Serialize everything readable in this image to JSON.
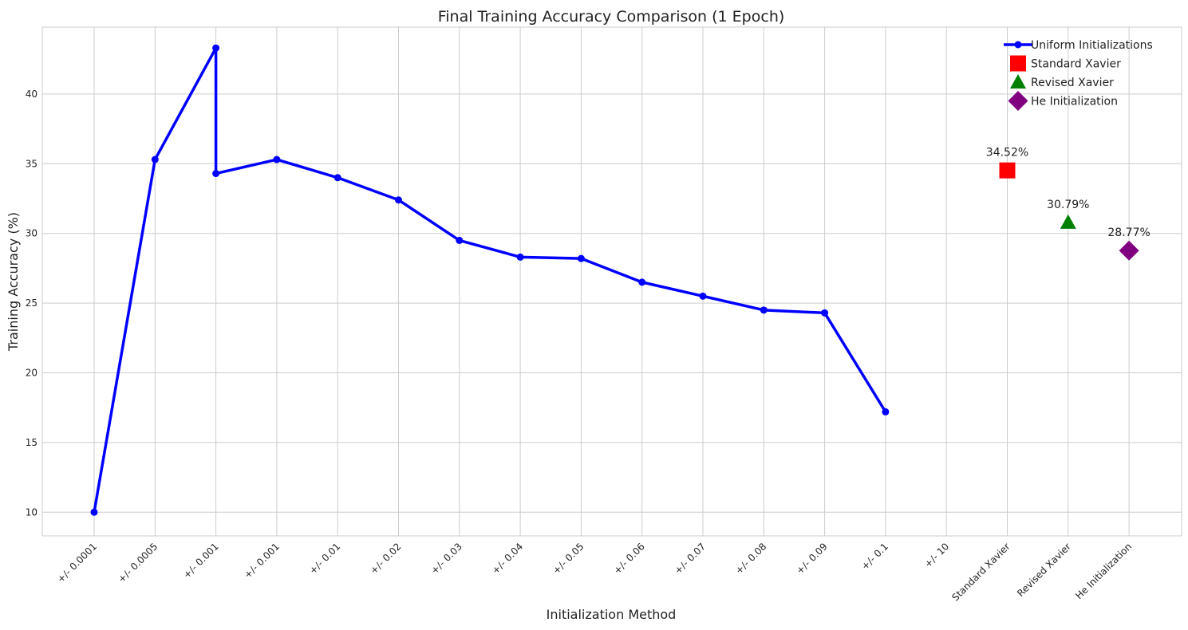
{
  "chart_data": {
    "type": "line",
    "title": "Final Training Accuracy Comparison (1 Epoch)",
    "xlabel": "Initialization Method",
    "ylabel": "Training Accuracy (%)",
    "categories": [
      "+/- 0.0001",
      "+/- 0.0005",
      "+/- 0.001",
      "+/- 0.001",
      "+/- 0.01",
      "+/- 0.02",
      "+/- 0.03",
      "+/- 0.04",
      "+/- 0.05",
      "+/- 0.06",
      "+/- 0.07",
      "+/- 0.08",
      "+/- 0.09",
      "+/- 0.1",
      "+/- 10",
      "Standard Xavier",
      "Revised Xavier",
      "He Initialization"
    ],
    "ylim": [
      8.3,
      44.8
    ],
    "yticks": [
      10,
      15,
      20,
      25,
      30,
      35,
      40
    ],
    "grid": true,
    "legend_position": "top-right",
    "series": [
      {
        "name": "Uniform Initializations",
        "color": "#0000ff",
        "marker": "circle",
        "points": [
          {
            "x": 0,
            "y": 10.0
          },
          {
            "x": 1,
            "y": 35.3
          },
          {
            "x": 2,
            "y": 43.3
          },
          {
            "x": 2,
            "y": 34.3
          },
          {
            "x": 3,
            "y": 35.3
          },
          {
            "x": 4,
            "y": 34.0
          },
          {
            "x": 5,
            "y": 32.4
          },
          {
            "x": 6,
            "y": 29.5
          },
          {
            "x": 7,
            "y": 28.3
          },
          {
            "x": 8,
            "y": 28.2
          },
          {
            "x": 9,
            "y": 26.5
          },
          {
            "x": 10,
            "y": 25.5
          },
          {
            "x": 11,
            "y": 24.5
          },
          {
            "x": 12,
            "y": 24.3
          },
          {
            "x": 13,
            "y": 17.2
          }
        ]
      },
      {
        "name": "Standard Xavier",
        "color": "#ff0000",
        "marker": "square",
        "points": [
          {
            "x": 15,
            "y": 34.52
          }
        ],
        "label": "34.52%"
      },
      {
        "name": "Revised Xavier",
        "color": "#008000",
        "marker": "triangle",
        "points": [
          {
            "x": 16,
            "y": 30.79
          }
        ],
        "label": "30.79%"
      },
      {
        "name": "He Initialization",
        "color": "#800080",
        "marker": "diamond",
        "points": [
          {
            "x": 17,
            "y": 28.77
          }
        ],
        "label": "28.77%"
      }
    ]
  }
}
